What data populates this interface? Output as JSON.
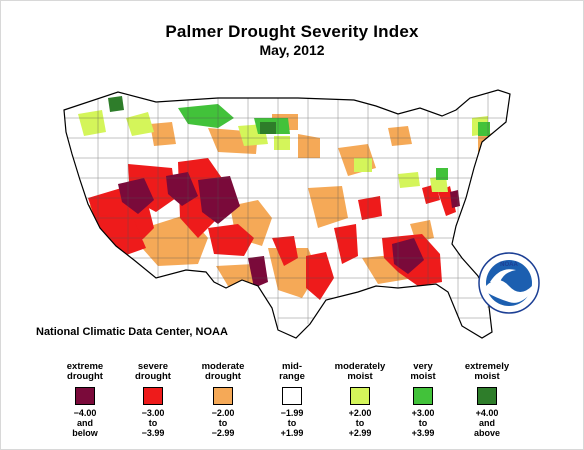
{
  "title": "Palmer Drought Severity Index",
  "subtitle": "May, 2012",
  "credit": "National Climatic Data Center, NOAA",
  "logo_text": "NOAA",
  "legend": [
    {
      "label": "extreme\ndrought",
      "color": "#7a0a3a",
      "range": "−4.00\nand\nbelow"
    },
    {
      "label": "severe\ndrought",
      "color": "#ee1b1b",
      "range": "−3.00\nto\n−3.99"
    },
    {
      "label": "moderate\ndrought",
      "color": "#f5a957",
      "range": "−2.00\nto\n−2.99"
    },
    {
      "label": "mid-\nrange",
      "color": "#ffffff",
      "range": "−1.99\nto\n+1.99"
    },
    {
      "label": "moderately\nmoist",
      "color": "#d4f55a",
      "range": "+2.00\nto\n+2.99"
    },
    {
      "label": "very\nmoist",
      "color": "#42c23a",
      "range": "+3.00\nto\n+3.99"
    },
    {
      "label": "extremely\nmoist",
      "color": "#2e7d2a",
      "range": "+4.00\nand\nabove"
    }
  ]
}
